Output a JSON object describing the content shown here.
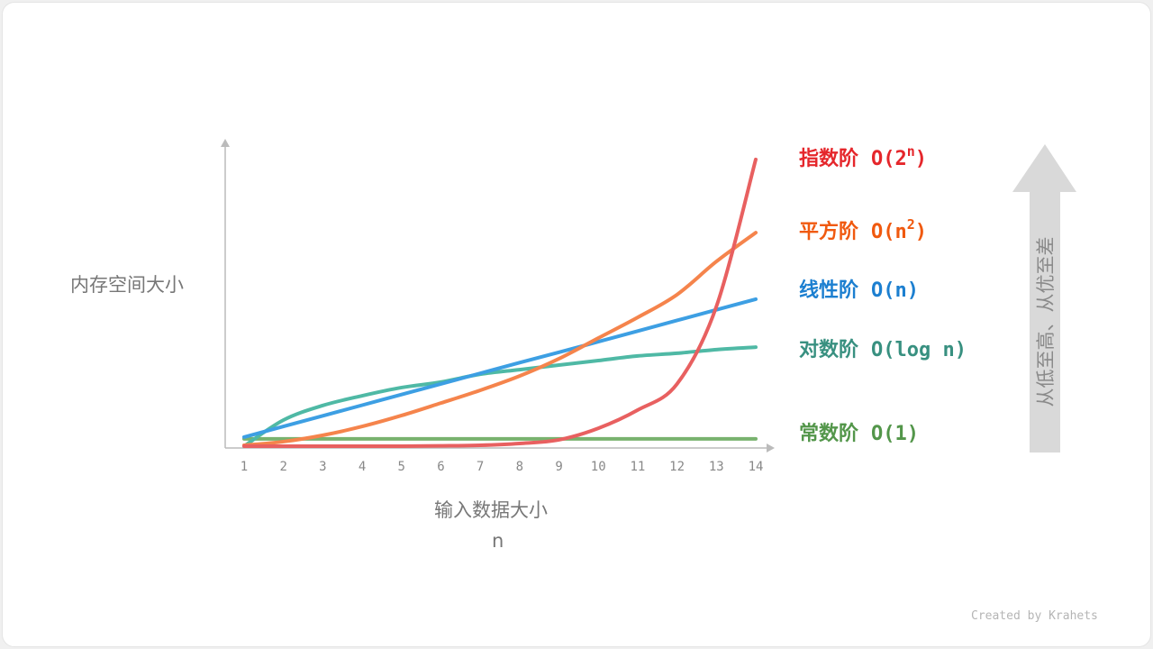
{
  "chart_data": {
    "type": "line",
    "xlabel": "输入数据大小",
    "xlabel_sub": "n",
    "ylabel": "内存空间大小",
    "x": [
      1,
      2,
      3,
      4,
      5,
      6,
      7,
      8,
      9,
      10,
      11,
      12,
      13,
      14
    ],
    "xlim": [
      1,
      14
    ],
    "ylim": [
      0,
      100
    ],
    "grid": false,
    "legend_placement": "right",
    "series": [
      {
        "name": "常数阶",
        "notation": "O(1)",
        "color": "#78b26e",
        "label_color": "#53964a",
        "values": [
          2.4,
          2.4,
          2.4,
          2.4,
          2.4,
          2.4,
          2.4,
          2.4,
          2.4,
          2.4,
          2.4,
          2.4,
          2.4,
          2.4
        ]
      },
      {
        "name": "对数阶",
        "notation": "O(log n)",
        "color": "#4fb9a5",
        "label_color": "#389080",
        "values": [
          0,
          8.6,
          13.4,
          16.6,
          19.3,
          21.1,
          23.7,
          25.2,
          26.7,
          28.2,
          29.7,
          30.6,
          31.8,
          32.6
        ]
      },
      {
        "name": "线性阶",
        "notation": "O(n)",
        "color": "#3d9fe3",
        "label_color": "#1c7fd0",
        "values": [
          3.0,
          6.5,
          10.0,
          13.5,
          17.0,
          20.5,
          24.0,
          27.5,
          30.9,
          34.4,
          37.9,
          41.4,
          44.9,
          48.4
        ]
      },
      {
        "name": "平方阶",
        "notation": "O(n",
        "sup": "2",
        "color": "#f5844c",
        "label_color": "#f0590f",
        "values": [
          0.3,
          1.5,
          3.6,
          6.5,
          10.1,
          14.2,
          18.4,
          23.1,
          28.8,
          35.6,
          42.4,
          49.9,
          60.8,
          70.3
        ]
      },
      {
        "name": "指数阶",
        "notation": "O(2",
        "sup": "n",
        "color": "#e86060",
        "label_color": "#e5262b",
        "values": [
          0,
          0,
          0,
          0,
          0,
          0.1,
          0.3,
          0.9,
          2.1,
          5.9,
          11.9,
          20.5,
          46.0,
          94.4
        ]
      }
    ],
    "arrow_text": "从低至高、从优至差"
  },
  "credit": "Created by Krahets",
  "close_paren": ")"
}
